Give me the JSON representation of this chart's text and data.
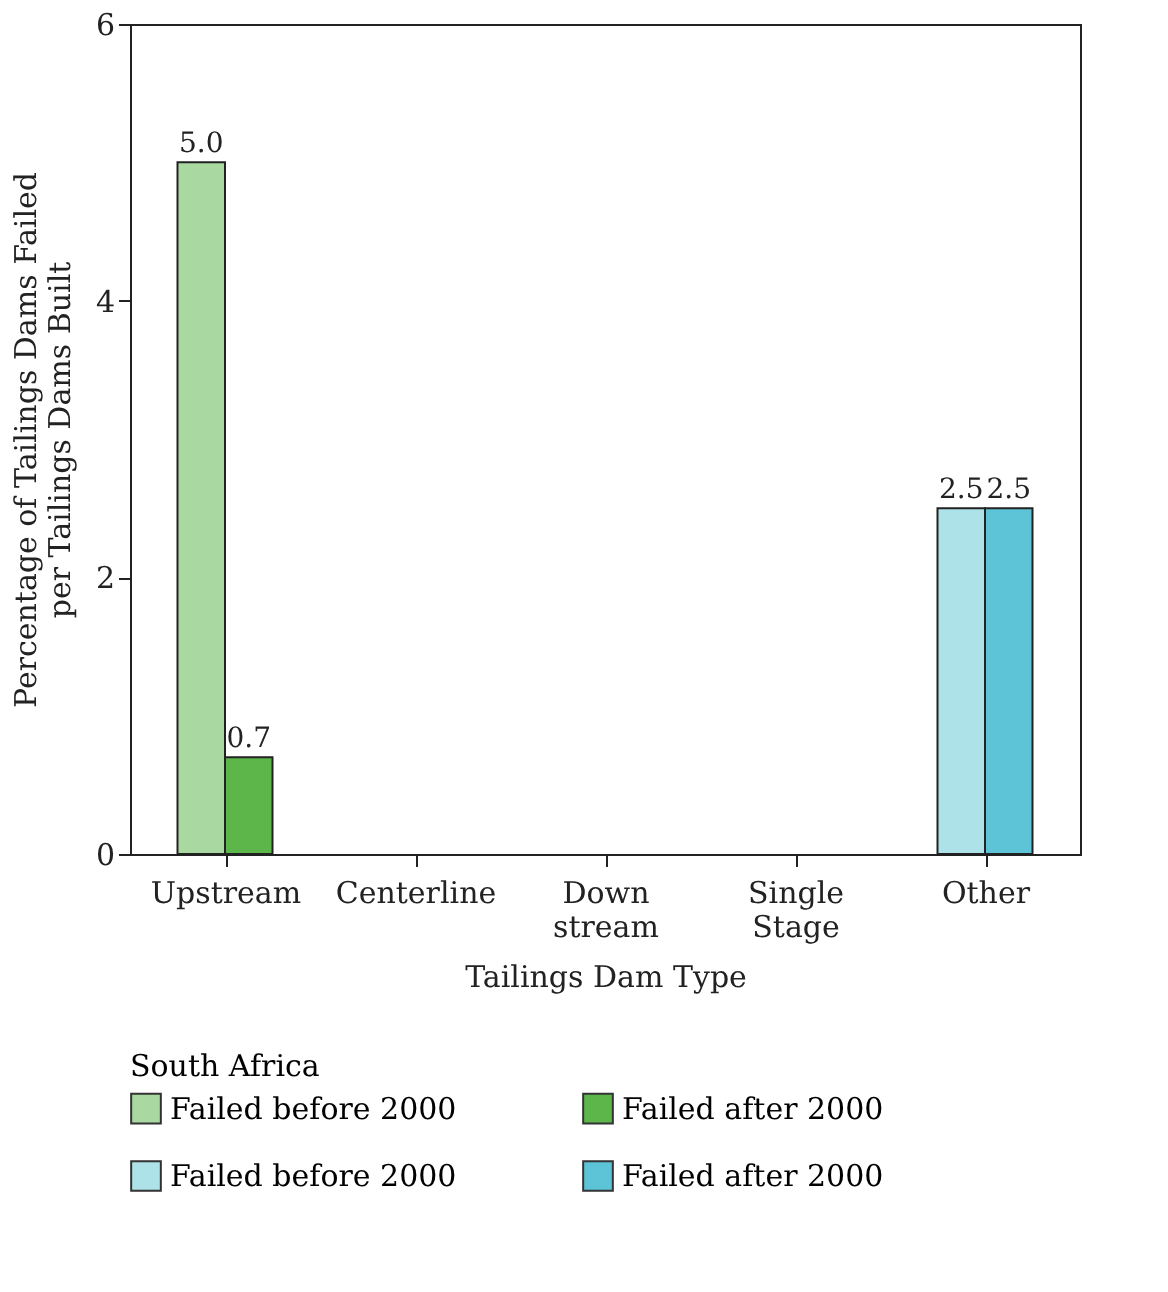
{
  "chart_data": {
    "type": "bar",
    "xlabel": "Tailings Dam Type",
    "ylabel": "Percentage of Tailings Dams Failed per Tailings Dams Built",
    "legend_title": "South Africa",
    "categories": [
      "Upstream",
      "Centerline",
      "Down stream",
      "Single Stage",
      "Other"
    ],
    "series": [
      {
        "name": "Failed before 2000",
        "color": "#a9d9a1",
        "values": [
          5.0,
          null,
          null,
          null,
          null
        ],
        "value_labels": [
          "5.0",
          null,
          null,
          null,
          null
        ]
      },
      {
        "name": "Failed after 2000",
        "color": "#5db64a",
        "values": [
          0.7,
          null,
          null,
          null,
          null
        ],
        "value_labels": [
          "0.7",
          null,
          null,
          null,
          null
        ]
      },
      {
        "name": "Failed before 2000",
        "color": "#ade2e8",
        "values": [
          null,
          null,
          null,
          null,
          2.5
        ],
        "value_labels": [
          null,
          null,
          null,
          null,
          "2.5"
        ]
      },
      {
        "name": "Failed after 2000",
        "color": "#5cc4d6",
        "values": [
          null,
          null,
          null,
          null,
          2.5
        ],
        "value_labels": [
          null,
          null,
          null,
          null,
          "2.5"
        ]
      }
    ],
    "ylim": [
      0,
      6
    ],
    "yticks": [
      0,
      2,
      4,
      6
    ],
    "grid": false,
    "legend": "bottom"
  }
}
